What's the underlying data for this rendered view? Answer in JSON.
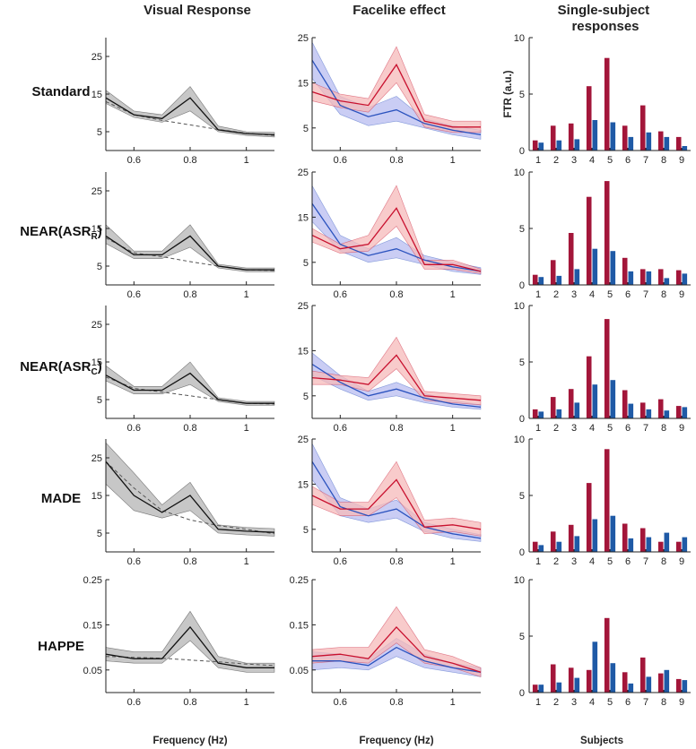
{
  "colors": {
    "grey_fill": "#bdbdbd",
    "grey_line": "#111111",
    "blue_fill": "#b8bcf0",
    "blue_line": "#2a52be",
    "red_fill": "#f6b9b9",
    "red_line": "#c8102e",
    "bar_red": "#a3163a",
    "bar_blue": "#1f5aa6",
    "dash": "#555555"
  },
  "column_titles": [
    "Visual Response",
    "Facelike effect",
    "Single-subject responses"
  ],
  "row_labels": [
    "Standard",
    "NEAR(ASR_R)",
    "NEAR(ASR_C)",
    "MADE",
    "HAPPE"
  ],
  "x_axis_labels": {
    "frequency": "Frequency (Hz)",
    "subjects": "Subjects"
  },
  "y_axis_label_bar": "FTR (a.u.)",
  "chart_data": [
    {
      "type": "line",
      "row": "Standard",
      "column": "Visual Response",
      "x": [
        0.5,
        0.6,
        0.7,
        0.8,
        0.9,
        1.0,
        1.1
      ],
      "xticks": [
        0.6,
        0.8,
        1.0
      ],
      "xtick_labels": [
        "0.6",
        "0.8",
        "1"
      ],
      "ylim": [
        0,
        30
      ],
      "yticks": [
        5,
        15,
        25
      ],
      "ytick_labels": [
        "5",
        "15",
        "25"
      ],
      "series": [
        {
          "name": "mean",
          "values": [
            14,
            9.5,
            8.5,
            14,
            5.5,
            4.5,
            4.2
          ],
          "lower": [
            12.5,
            8.8,
            7.5,
            10.5,
            5,
            4,
            3.6
          ],
          "upper": [
            16,
            10.5,
            9.5,
            17,
            6.5,
            5,
            4.8
          ]
        },
        {
          "name": "baseline",
          "values": [
            13,
            9.5,
            8,
            6.8,
            5.6,
            4.6,
            4
          ]
        }
      ]
    },
    {
      "type": "line",
      "row": "Standard",
      "column": "Facelike effect",
      "x": [
        0.5,
        0.6,
        0.7,
        0.8,
        0.9,
        1.0,
        1.1
      ],
      "xticks": [
        0.6,
        0.8,
        1.0
      ],
      "xtick_labels": [
        "0.6",
        "0.8",
        "1"
      ],
      "ylim": [
        0,
        25
      ],
      "yticks": [
        5,
        15,
        25
      ],
      "ytick_labels": [
        "5",
        "15",
        "25"
      ],
      "series": [
        {
          "name": "blue",
          "values": [
            20,
            10,
            7.5,
            9,
            6,
            4.5,
            3.5
          ],
          "lower": [
            16,
            8,
            5.5,
            6.5,
            5,
            3.5,
            2.5
          ],
          "upper": [
            24,
            12,
            9.5,
            12,
            7,
            5.5,
            4.5
          ]
        },
        {
          "name": "red",
          "values": [
            13,
            11,
            10,
            19,
            6.5,
            5.2,
            5.2
          ],
          "lower": [
            11,
            9.5,
            8.5,
            15,
            5.2,
            4,
            4
          ],
          "upper": [
            15,
            12.5,
            11.5,
            23,
            8,
            6.5,
            6.5
          ]
        }
      ]
    },
    {
      "type": "bar",
      "row": "Standard",
      "column": "Single-subject responses",
      "categories": [
        "1",
        "2",
        "3",
        "4",
        "5",
        "6",
        "7",
        "8",
        "9"
      ],
      "ylim": [
        0,
        10
      ],
      "yticks": [
        0,
        5,
        10
      ],
      "ytick_labels": [
        "0",
        "5",
        "10"
      ],
      "series": [
        {
          "name": "red",
          "values": [
            0.9,
            2.2,
            2.4,
            5.7,
            8.2,
            2.2,
            4.0,
            1.7,
            1.2
          ]
        },
        {
          "name": "blue",
          "values": [
            0.7,
            0.9,
            1.0,
            2.7,
            2.5,
            1.2,
            1.6,
            1.2,
            0.4
          ]
        }
      ]
    },
    {
      "type": "line",
      "row": "NEAR(ASR_R)",
      "column": "Visual Response",
      "x": [
        0.5,
        0.6,
        0.7,
        0.8,
        0.9,
        1.0,
        1.1
      ],
      "xticks": [
        0.6,
        0.8,
        1.0
      ],
      "xtick_labels": [
        "0.6",
        "0.8",
        "1"
      ],
      "ylim": [
        0,
        30
      ],
      "yticks": [
        5,
        15,
        25
      ],
      "ytick_labels": [
        "5",
        "15",
        "25"
      ],
      "series": [
        {
          "name": "mean",
          "values": [
            13,
            8,
            8,
            13,
            5,
            4,
            4
          ],
          "lower": [
            11,
            7,
            7,
            10,
            4.5,
            3.5,
            3.5
          ],
          "upper": [
            16,
            9,
            9,
            16,
            5.5,
            4.5,
            4.5
          ]
        },
        {
          "name": "baseline",
          "values": [
            12.5,
            8.5,
            7.5,
            6.2,
            5,
            4,
            3.8
          ]
        }
      ]
    },
    {
      "type": "line",
      "row": "NEAR(ASR_R)",
      "column": "Facelike effect",
      "x": [
        0.5,
        0.6,
        0.7,
        0.8,
        0.9,
        1.0,
        1.1
      ],
      "xticks": [
        0.6,
        0.8,
        1.0
      ],
      "xtick_labels": [
        "0.6",
        "0.8",
        "1"
      ],
      "ylim": [
        0,
        25
      ],
      "yticks": [
        5,
        15,
        25
      ],
      "ytick_labels": [
        "5",
        "15",
        "25"
      ],
      "series": [
        {
          "name": "blue",
          "values": [
            18,
            9,
            6.5,
            8,
            5.5,
            4,
            3
          ],
          "lower": [
            14,
            7.5,
            5,
            6,
            4.5,
            3,
            2.3
          ],
          "upper": [
            22,
            11,
            8,
            10.5,
            6.5,
            5,
            3.8
          ]
        },
        {
          "name": "red",
          "values": [
            11,
            8,
            9,
            17,
            4.5,
            4.5,
            3
          ],
          "lower": [
            9.5,
            7,
            7.5,
            13,
            3.5,
            3.5,
            2.5
          ],
          "upper": [
            12.5,
            9,
            11,
            22,
            5.5,
            5.5,
            3.5
          ]
        }
      ]
    },
    {
      "type": "bar",
      "row": "NEAR(ASR_R)",
      "column": "Single-subject responses",
      "categories": [
        "1",
        "2",
        "3",
        "4",
        "5",
        "6",
        "7",
        "8",
        "9"
      ],
      "ylim": [
        0,
        10
      ],
      "yticks": [
        0,
        5,
        10
      ],
      "ytick_labels": [
        "0",
        "5",
        "10"
      ],
      "series": [
        {
          "name": "red",
          "values": [
            0.9,
            2.2,
            4.6,
            7.8,
            9.2,
            2.4,
            1.4,
            1.4,
            1.3
          ]
        },
        {
          "name": "blue",
          "values": [
            0.7,
            0.8,
            1.4,
            3.2,
            3.0,
            1.2,
            1.2,
            0.6,
            1.0
          ]
        }
      ]
    },
    {
      "type": "line",
      "row": "NEAR(ASR_C)",
      "column": "Visual Response",
      "x": [
        0.5,
        0.6,
        0.7,
        0.8,
        0.9,
        1.0,
        1.1
      ],
      "xticks": [
        0.6,
        0.8,
        1.0
      ],
      "xtick_labels": [
        "0.6",
        "0.8",
        "1"
      ],
      "ylim": [
        0,
        30
      ],
      "yticks": [
        5,
        15,
        25
      ],
      "ytick_labels": [
        "5",
        "15",
        "25"
      ],
      "series": [
        {
          "name": "mean",
          "values": [
            11.5,
            7.5,
            7.5,
            12,
            5,
            4,
            4
          ],
          "lower": [
            10,
            6.5,
            6.5,
            9,
            4.5,
            3.5,
            3.5
          ],
          "upper": [
            14,
            8.5,
            8.5,
            15,
            5.5,
            4.5,
            4.5
          ]
        },
        {
          "name": "baseline",
          "values": [
            11,
            8,
            7,
            6,
            5,
            4,
            3.8
          ]
        }
      ]
    },
    {
      "type": "line",
      "row": "NEAR(ASR_C)",
      "column": "Facelike effect",
      "x": [
        0.5,
        0.6,
        0.7,
        0.8,
        0.9,
        1.0,
        1.1
      ],
      "xticks": [
        0.6,
        0.8,
        1.0
      ],
      "xtick_labels": [
        "0.6",
        "0.8",
        "1"
      ],
      "ylim": [
        0,
        25
      ],
      "yticks": [
        5,
        15,
        25
      ],
      "ytick_labels": [
        "5",
        "15",
        "25"
      ],
      "series": [
        {
          "name": "blue",
          "values": [
            12,
            8,
            5,
            6.5,
            4.5,
            3.2,
            2.5
          ],
          "lower": [
            9.5,
            6.5,
            4,
            5,
            3.5,
            2.5,
            2
          ],
          "upper": [
            14.5,
            9.5,
            6,
            8,
            5.5,
            4,
            3
          ]
        },
        {
          "name": "red",
          "values": [
            9,
            8.5,
            7.5,
            14,
            5,
            4.5,
            4
          ],
          "lower": [
            7.5,
            7.5,
            6,
            11,
            4,
            3.5,
            3
          ],
          "upper": [
            10.5,
            9.5,
            9,
            18,
            6,
            5.5,
            5
          ]
        }
      ]
    },
    {
      "type": "bar",
      "row": "NEAR(ASR_C)",
      "column": "Single-subject responses",
      "categories": [
        "1",
        "2",
        "3",
        "4",
        "5",
        "6",
        "7",
        "8",
        "9"
      ],
      "ylim": [
        0,
        10
      ],
      "yticks": [
        0,
        5,
        10
      ],
      "ytick_labels": [
        "0",
        "5",
        "10"
      ],
      "series": [
        {
          "name": "red",
          "values": [
            0.8,
            1.9,
            2.6,
            5.5,
            8.8,
            2.5,
            1.4,
            1.7,
            1.1
          ]
        },
        {
          "name": "blue",
          "values": [
            0.6,
            0.8,
            1.4,
            3.0,
            3.4,
            1.3,
            0.8,
            0.7,
            1.0
          ]
        }
      ]
    },
    {
      "type": "line",
      "row": "MADE",
      "column": "Visual Response",
      "x": [
        0.5,
        0.6,
        0.7,
        0.8,
        0.9,
        1.0,
        1.1
      ],
      "xticks": [
        0.6,
        0.8,
        1.0
      ],
      "xtick_labels": [
        "0.6",
        "0.8",
        "1"
      ],
      "ylim": [
        0,
        30
      ],
      "yticks": [
        5,
        15,
        25
      ],
      "ytick_labels": [
        "5",
        "15",
        "25"
      ],
      "series": [
        {
          "name": "mean",
          "values": [
            24,
            15,
            10.5,
            15,
            6,
            5.5,
            5.2
          ],
          "lower": [
            18,
            11,
            9,
            11,
            5,
            4.5,
            4.2
          ],
          "upper": [
            29,
            21,
            12.5,
            18.5,
            7.2,
            6.5,
            6.2
          ]
        },
        {
          "name": "baseline",
          "values": [
            24,
            17,
            11,
            8.5,
            7,
            6,
            4.8
          ]
        }
      ]
    },
    {
      "type": "line",
      "row": "MADE",
      "column": "Facelike effect",
      "x": [
        0.5,
        0.6,
        0.7,
        0.8,
        0.9,
        1.0,
        1.1
      ],
      "xticks": [
        0.6,
        0.8,
        1.0
      ],
      "xtick_labels": [
        "0.6",
        "0.8",
        "1"
      ],
      "ylim": [
        0,
        25
      ],
      "yticks": [
        5,
        15,
        25
      ],
      "ytick_labels": [
        "5",
        "15",
        "25"
      ],
      "series": [
        {
          "name": "blue",
          "values": [
            20,
            10,
            8,
            9.5,
            5.5,
            4,
            3
          ],
          "lower": [
            16,
            8,
            6.5,
            7.5,
            4.5,
            3,
            2.3
          ],
          "upper": [
            24,
            12,
            9.5,
            11.5,
            6.5,
            5,
            3.8
          ]
        },
        {
          "name": "red",
          "values": [
            12.5,
            9.5,
            9.5,
            16,
            5.5,
            6,
            5
          ],
          "lower": [
            10.5,
            8,
            8,
            12,
            4,
            4.5,
            3.5
          ],
          "upper": [
            14.5,
            11,
            11,
            20,
            7,
            7.5,
            6.5
          ]
        }
      ]
    },
    {
      "type": "bar",
      "row": "MADE",
      "column": "Single-subject responses",
      "categories": [
        "1",
        "2",
        "3",
        "4",
        "5",
        "6",
        "7",
        "8",
        "9"
      ],
      "ylim": [
        0,
        10
      ],
      "yticks": [
        0,
        5,
        10
      ],
      "ytick_labels": [
        "0",
        "5",
        "10"
      ],
      "series": [
        {
          "name": "red",
          "values": [
            0.9,
            1.8,
            2.4,
            6.1,
            9.1,
            2.5,
            2.1,
            0.9,
            0.9
          ]
        },
        {
          "name": "blue",
          "values": [
            0.6,
            0.9,
            1.4,
            2.9,
            3.2,
            1.2,
            1.3,
            1.7,
            1.3
          ]
        }
      ]
    },
    {
      "type": "line",
      "row": "HAPPE",
      "column": "Visual Response",
      "x": [
        0.5,
        0.6,
        0.7,
        0.8,
        0.9,
        1.0,
        1.1
      ],
      "xticks": [
        0.6,
        0.8,
        1.0
      ],
      "xtick_labels": [
        "0.6",
        "0.8",
        "1"
      ],
      "ylim": [
        0,
        0.25
      ],
      "yticks": [
        0.05,
        0.15,
        0.25
      ],
      "ytick_labels": [
        "0.05",
        "0.15",
        "0.25"
      ],
      "series": [
        {
          "name": "mean",
          "values": [
            0.085,
            0.075,
            0.075,
            0.145,
            0.065,
            0.055,
            0.055
          ],
          "lower": [
            0.07,
            0.065,
            0.065,
            0.115,
            0.055,
            0.045,
            0.045
          ],
          "upper": [
            0.1,
            0.09,
            0.09,
            0.18,
            0.08,
            0.065,
            0.065
          ]
        },
        {
          "name": "baseline",
          "values": [
            0.08,
            0.078,
            0.076,
            0.072,
            0.068,
            0.063,
            0.06
          ]
        }
      ]
    },
    {
      "type": "line",
      "row": "HAPPE",
      "column": "Facelike effect",
      "x": [
        0.5,
        0.6,
        0.7,
        0.8,
        0.9,
        1.0,
        1.1
      ],
      "xticks": [
        0.6,
        0.8,
        1.0
      ],
      "xtick_labels": [
        "0.6",
        "0.8",
        "1"
      ],
      "ylim": [
        0,
        0.25
      ],
      "yticks": [
        0.05,
        0.15,
        0.25
      ],
      "ytick_labels": [
        "0.05",
        "0.15",
        "0.25"
      ],
      "series": [
        {
          "name": "blue",
          "values": [
            0.07,
            0.07,
            0.06,
            0.1,
            0.07,
            0.055,
            0.045
          ],
          "lower": [
            0.05,
            0.055,
            0.05,
            0.08,
            0.055,
            0.045,
            0.035
          ],
          "upper": [
            0.09,
            0.085,
            0.075,
            0.12,
            0.085,
            0.065,
            0.055
          ]
        },
        {
          "name": "red",
          "values": [
            0.08,
            0.085,
            0.075,
            0.145,
            0.08,
            0.065,
            0.045
          ],
          "lower": [
            0.065,
            0.07,
            0.065,
            0.11,
            0.065,
            0.055,
            0.035
          ],
          "upper": [
            0.095,
            0.1,
            0.1,
            0.19,
            0.095,
            0.08,
            0.055
          ]
        }
      ]
    },
    {
      "type": "bar",
      "row": "HAPPE",
      "column": "Single-subject responses",
      "categories": [
        "1",
        "2",
        "3",
        "4",
        "5",
        "6",
        "7",
        "8",
        "9"
      ],
      "ylim": [
        0,
        10
      ],
      "yticks": [
        0,
        5,
        10
      ],
      "ytick_labels": [
        "0",
        "5",
        "10"
      ],
      "series": [
        {
          "name": "red",
          "values": [
            0.7,
            2.5,
            2.2,
            2.0,
            6.6,
            1.8,
            3.1,
            1.7,
            1.2
          ]
        },
        {
          "name": "blue",
          "values": [
            0.7,
            0.9,
            1.3,
            4.5,
            2.6,
            0.8,
            1.4,
            2.0,
            1.1
          ]
        }
      ]
    }
  ]
}
